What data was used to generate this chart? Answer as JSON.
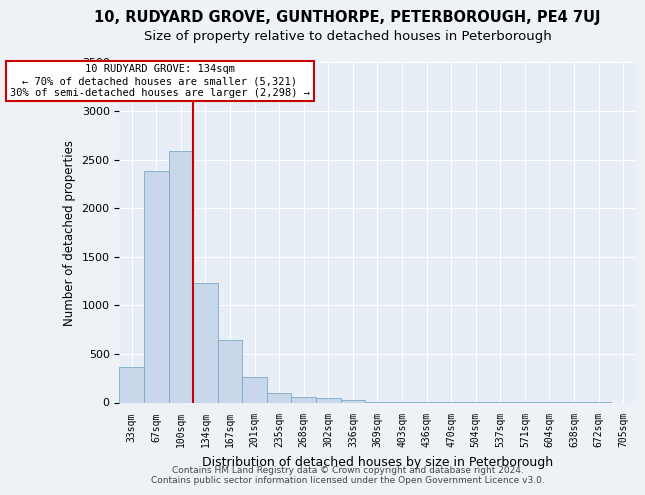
{
  "title1": "10, RUDYARD GROVE, GUNTHORPE, PETERBOROUGH, PE4 7UJ",
  "title2": "Size of property relative to detached houses in Peterborough",
  "xlabel": "Distribution of detached houses by size in Peterborough",
  "ylabel": "Number of detached properties",
  "categories": [
    "33sqm",
    "67sqm",
    "100sqm",
    "134sqm",
    "167sqm",
    "201sqm",
    "235sqm",
    "268sqm",
    "302sqm",
    "336sqm",
    "369sqm",
    "403sqm",
    "436sqm",
    "470sqm",
    "504sqm",
    "537sqm",
    "571sqm",
    "604sqm",
    "638sqm",
    "672sqm",
    "705sqm"
  ],
  "values": [
    370,
    2380,
    2590,
    1230,
    640,
    260,
    100,
    60,
    50,
    30,
    10,
    10,
    5,
    3,
    2,
    2,
    1,
    1,
    1,
    1,
    0
  ],
  "bar_color": "#c8d8ea",
  "bar_edge_color": "#7aaac8",
  "red_line_x": 2.5,
  "annotation_line1": "10 RUDYARD GROVE: 134sqm",
  "annotation_line2": "← 70% of detached houses are smaller (5,321)",
  "annotation_line3": "30% of semi-detached houses are larger (2,298) →",
  "annotation_box_color": "#ffffff",
  "annotation_box_edge": "#cc0000",
  "red_line_color": "#cc0000",
  "ylim": [
    0,
    3500
  ],
  "yticks": [
    0,
    500,
    1000,
    1500,
    2000,
    2500,
    3000,
    3500
  ],
  "footer1": "Contains HM Land Registry data © Crown copyright and database right 2024.",
  "footer2": "Contains public sector information licensed under the Open Government Licence v3.0.",
  "bg_color": "#eef2f7",
  "plot_bg_color": "#e8eef5",
  "grid_color": "#ffffff",
  "title1_fontsize": 10.5,
  "title2_fontsize": 9.5
}
